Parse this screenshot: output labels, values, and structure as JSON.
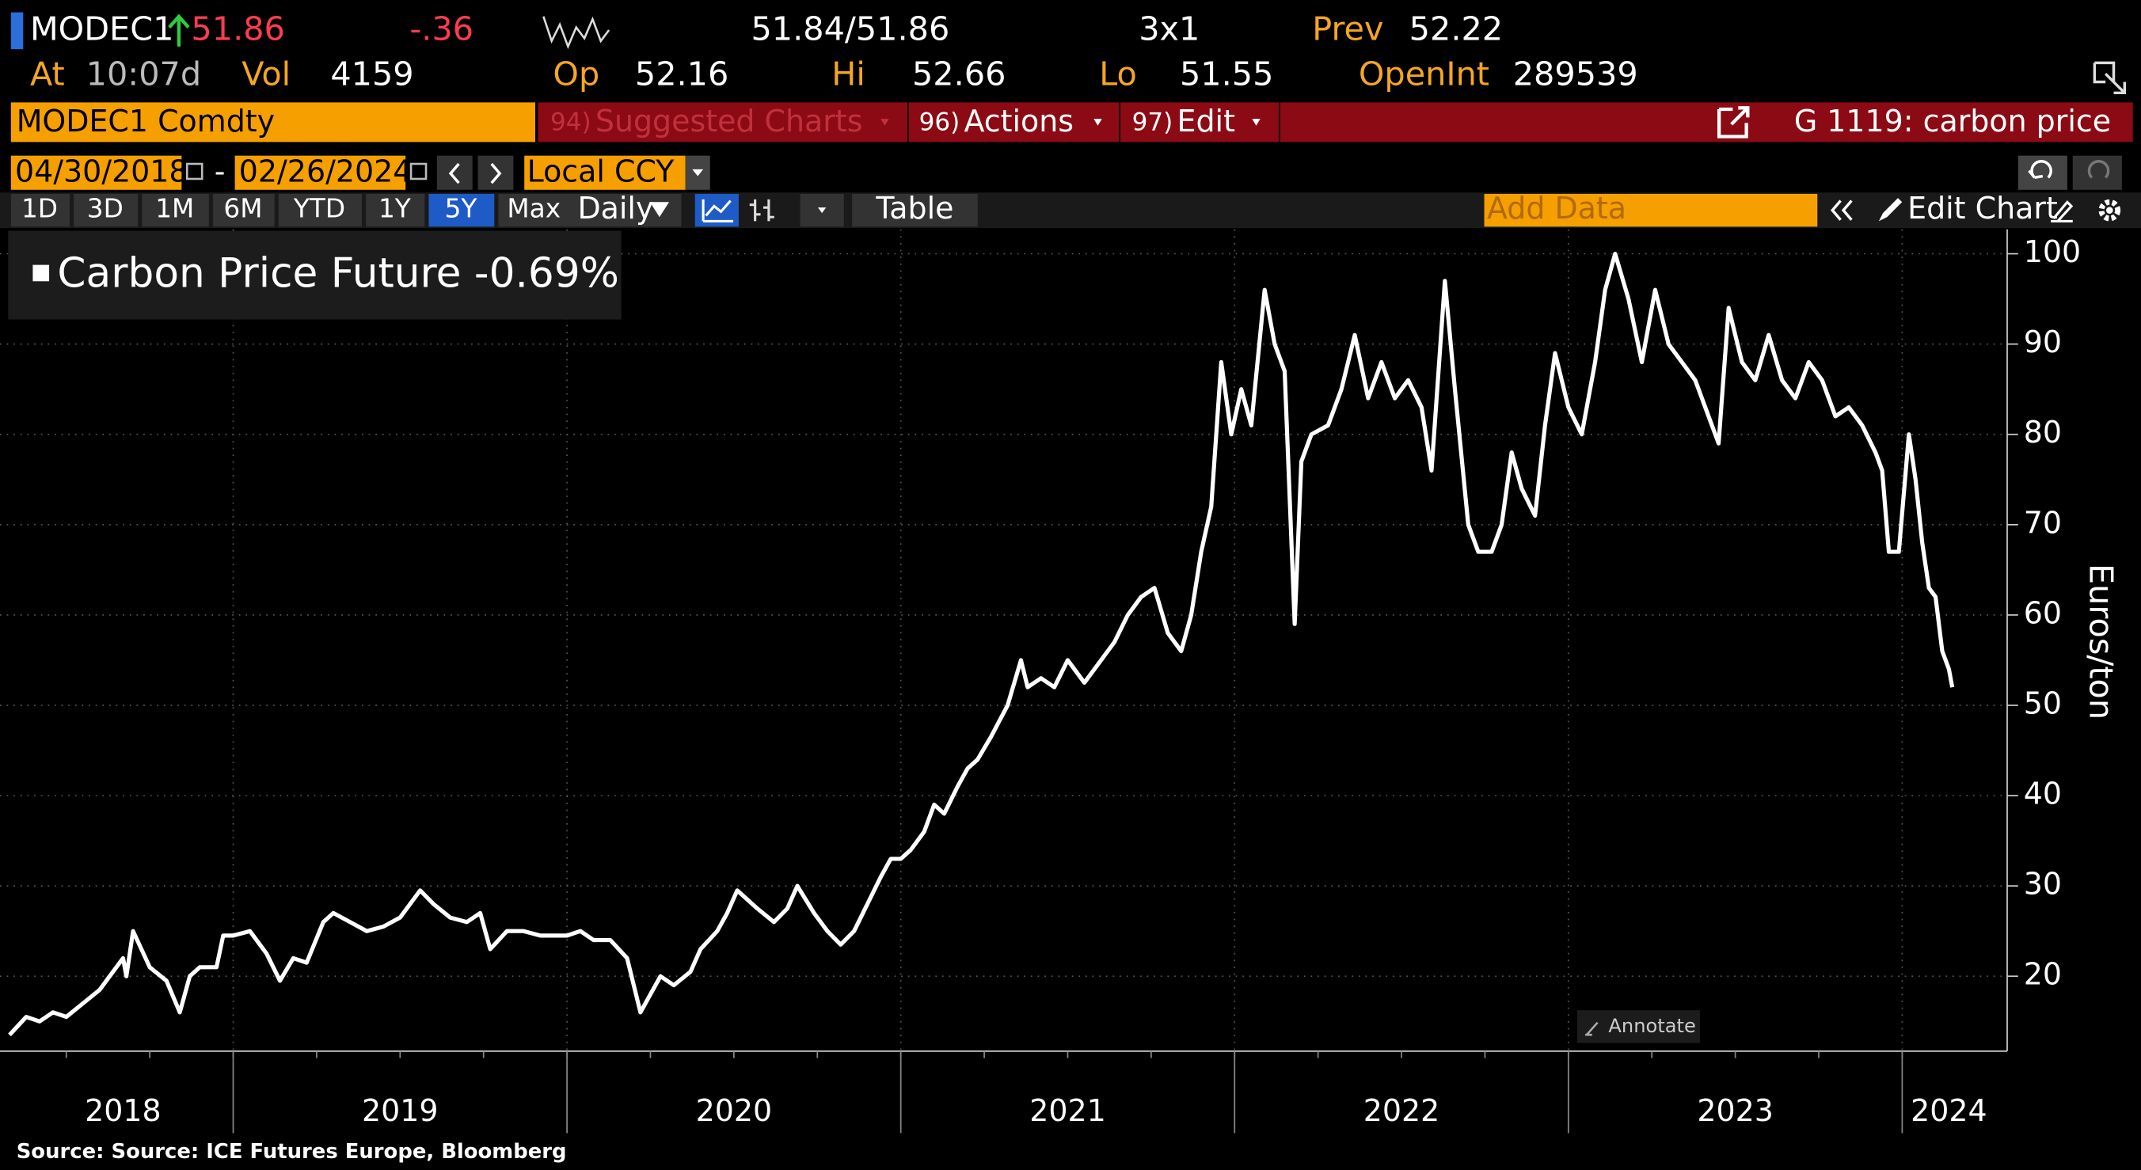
{
  "header": {
    "ticker": "MODEC1",
    "last": "51.86",
    "change": "-.36",
    "bid_ask": "51.84/51.86",
    "size": "3x1",
    "prev_label": "Prev",
    "prev": "52.22",
    "at_label": "At",
    "time": "10:07d",
    "vol_label": "Vol",
    "vol": "4159",
    "op_label": "Op",
    "op": "52.16",
    "hi_label": "Hi",
    "hi": "52.66",
    "lo_label": "Lo",
    "lo": "51.55",
    "oi_label": "OpenInt",
    "oi": "289539"
  },
  "toolbar": {
    "security": "MODEC1 Comdty",
    "suggested_num": "94)",
    "suggested": "Suggested Charts",
    "actions_num": "96)",
    "actions": "Actions",
    "edit_num": "97)",
    "edit": "Edit",
    "chart_title": "G 1119: carbon price",
    "start_date": "04/30/2018",
    "date_sep": "-",
    "end_date": "02/26/2024",
    "currency": "Local CCY",
    "periods": [
      "1D",
      "3D",
      "1M",
      "6M",
      "YTD",
      "1Y",
      "5Y",
      "Max"
    ],
    "active_period": "5Y",
    "frequency": "Daily",
    "table": "Table",
    "add_data": "Add Data",
    "edit_chart": "Edit Chart",
    "annotate": "Annotate"
  },
  "chart_data": {
    "type": "line",
    "y_label": "Euros/ton",
    "source": "Source: Source: ICE Futures Europe, Bloomberg",
    "grid": true,
    "xlim": [
      2018.33,
      2024.2
    ],
    "xticks": [
      {
        "value": 2018.67,
        "label": "2018"
      },
      {
        "value": 2019.5,
        "label": "2019"
      },
      {
        "value": 2020.5,
        "label": "2020"
      },
      {
        "value": 2021.5,
        "label": "2021"
      },
      {
        "value": 2022.5,
        "label": "2022"
      },
      {
        "value": 2023.5,
        "label": "2023"
      },
      {
        "value": 2024.14,
        "label": "2024"
      }
    ],
    "ylim": [
      11.7,
      102.7
    ],
    "yticks": [
      20,
      30,
      40,
      50,
      60,
      70,
      80,
      90,
      100
    ],
    "x": [
      2018.33,
      2018.38,
      2018.42,
      2018.46,
      2018.5,
      2018.55,
      2018.6,
      2018.63,
      2018.67,
      2018.68,
      2018.7,
      2018.75,
      2018.8,
      2018.84,
      2018.87,
      2018.9,
      2018.95,
      2018.97,
      2019.0,
      2019.05,
      2019.1,
      2019.14,
      2019.18,
      2019.22,
      2019.27,
      2019.3,
      2019.35,
      2019.4,
      2019.45,
      2019.5,
      2019.56,
      2019.6,
      2019.65,
      2019.7,
      2019.74,
      2019.77,
      2019.82,
      2019.87,
      2019.92,
      2019.97,
      2020.0,
      2020.04,
      2020.08,
      2020.13,
      2020.18,
      2020.22,
      2020.25,
      2020.28,
      2020.32,
      2020.37,
      2020.4,
      2020.45,
      2020.48,
      2020.51,
      2020.57,
      2020.62,
      2020.66,
      2020.69,
      2020.74,
      2020.78,
      2020.82,
      2020.86,
      2020.9,
      2020.94,
      2020.97,
      2021.0,
      2021.03,
      2021.07,
      2021.1,
      2021.13,
      2021.17,
      2021.2,
      2021.23,
      2021.27,
      2021.32,
      2021.36,
      2021.38,
      2021.42,
      2021.46,
      2021.5,
      2021.55,
      2021.6,
      2021.64,
      2021.68,
      2021.72,
      2021.76,
      2021.8,
      2021.84,
      2021.87,
      2021.9,
      2021.93,
      2021.96,
      2021.99,
      2022.02,
      2022.05,
      2022.09,
      2022.12,
      2022.15,
      2022.18,
      2022.2,
      2022.23,
      2022.28,
      2022.32,
      2022.36,
      2022.4,
      2022.44,
      2022.48,
      2022.52,
      2022.56,
      2022.59,
      2022.63,
      2022.66,
      2022.7,
      2022.73,
      2022.77,
      2022.8,
      2022.83,
      2022.86,
      2022.9,
      2022.93,
      2022.96,
      2023.0,
      2023.04,
      2023.08,
      2023.11,
      2023.14,
      2023.18,
      2023.22,
      2023.26,
      2023.3,
      2023.34,
      2023.38,
      2023.42,
      2023.45,
      2023.48,
      2023.52,
      2023.56,
      2023.6,
      2023.64,
      2023.68,
      2023.72,
      2023.76,
      2023.8,
      2023.84,
      2023.88,
      2023.92,
      2023.94,
      2023.96,
      2023.99,
      2024.02,
      2024.04,
      2024.06,
      2024.08,
      2024.1,
      2024.12,
      2024.14,
      2024.15
    ],
    "series": [
      {
        "name": "Carbon Price Future -0.69%",
        "color": "#ffffff",
        "values": [
          13.5,
          15.5,
          15,
          16,
          15.5,
          17,
          18.5,
          20,
          22,
          20,
          25,
          21,
          19.5,
          16,
          20,
          21,
          21,
          24.5,
          24.5,
          25,
          22.5,
          19.5,
          22,
          21.5,
          26,
          27,
          26,
          25,
          25.5,
          26.5,
          29.5,
          28,
          26.5,
          26,
          27,
          23,
          25,
          25,
          24.5,
          24.5,
          24.5,
          25,
          24,
          24,
          22,
          16,
          18,
          20,
          19,
          20.5,
          23,
          25,
          27,
          29.5,
          27.5,
          26,
          27.5,
          30,
          27,
          25,
          23.5,
          25,
          28,
          31,
          33,
          33,
          34,
          36,
          39,
          38,
          41,
          43,
          44,
          46.5,
          50,
          55,
          52,
          53,
          52,
          55,
          52.5,
          55,
          57,
          60,
          62,
          63,
          58,
          56,
          60,
          67,
          72,
          88,
          80,
          85,
          81,
          96,
          90,
          87,
          59,
          77,
          80,
          81,
          85,
          91,
          84,
          88,
          84,
          86,
          83,
          76,
          97,
          85,
          70,
          67,
          67,
          70,
          78,
          74,
          71,
          81,
          89,
          83,
          80,
          88,
          96,
          100,
          95,
          88,
          96,
          90,
          88,
          86,
          82,
          79,
          94,
          88,
          86,
          91,
          86,
          84,
          88,
          86,
          82,
          83,
          81,
          78,
          76,
          67,
          67,
          80,
          75,
          68,
          63,
          62,
          56,
          54,
          52
        ]
      }
    ]
  }
}
